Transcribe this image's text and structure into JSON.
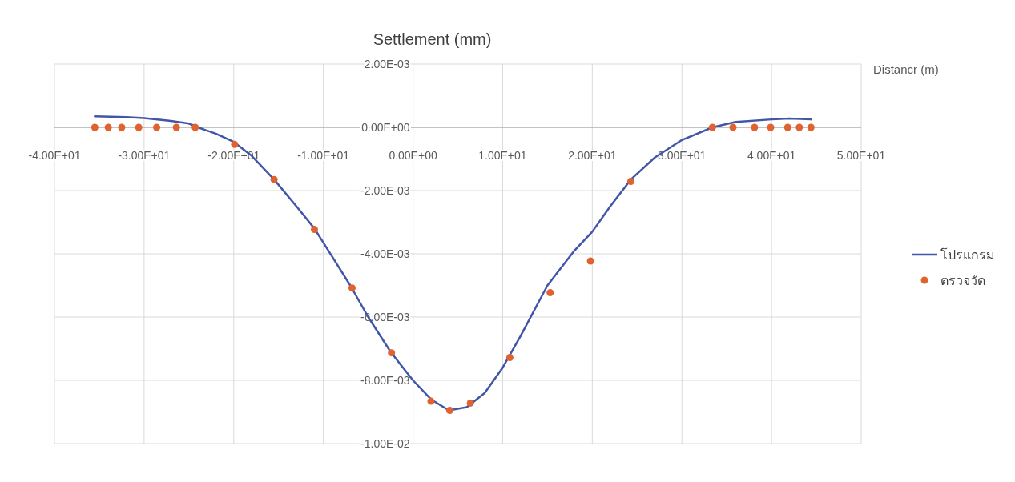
{
  "chart_data": {
    "type": "scatter",
    "ylabel": "Settlement (mm)",
    "xlabel": "Distancr (m)",
    "xlim": [
      -40,
      50
    ],
    "ylim": [
      -0.01,
      0.002
    ],
    "xticks": [
      {
        "value": -40,
        "label": "-4.00E+01"
      },
      {
        "value": -30,
        "label": "-3.00E+01"
      },
      {
        "value": -20,
        "label": "-2.00E+01"
      },
      {
        "value": -10,
        "label": "-1.00E+01"
      },
      {
        "value": 0,
        "label": "0.00E+00"
      },
      {
        "value": 10,
        "label": "1.00E+01"
      },
      {
        "value": 20,
        "label": "2.00E+01"
      },
      {
        "value": 30,
        "label": "3.00E+01"
      },
      {
        "value": 40,
        "label": "4.00E+01"
      },
      {
        "value": 50,
        "label": "5.00E+01"
      }
    ],
    "yticks": [
      {
        "value": 0.002,
        "label": "2.00E-03"
      },
      {
        "value": 0,
        "label": "0.00E+00"
      },
      {
        "value": -0.002,
        "label": "-2.00E-03"
      },
      {
        "value": -0.004,
        "label": "-4.00E-03"
      },
      {
        "value": -0.006,
        "label": "-6.00E-03"
      },
      {
        "value": -0.008,
        "label": "-8.00E-03"
      },
      {
        "value": -0.01,
        "label": "-1.00E-02"
      }
    ],
    "grid": true,
    "legend": "right",
    "series": [
      {
        "name": "โปรแกรม",
        "type": "line",
        "color": "#4256a8",
        "marker": "none",
        "line_style": "solid",
        "x": [
          -35.5,
          -32,
          -30,
          -27,
          -25,
          -24,
          -22,
          -20,
          -18,
          -15.5,
          -13,
          -11,
          -9,
          -7,
          -5,
          -2.5,
          0,
          2,
          4,
          6,
          8,
          10,
          12,
          15,
          18,
          20,
          22,
          24.3,
          27,
          30,
          33.4,
          36,
          40,
          42,
          44.4
        ],
        "values": [
          0.00035,
          0.00032,
          0.00029,
          0.0002,
          0.00012,
          0.0,
          -0.0002,
          -0.00046,
          -0.0009,
          -0.00165,
          -0.0025,
          -0.0032,
          -0.0041,
          -0.005,
          -0.006,
          -0.0071,
          -0.008,
          -0.0086,
          -0.00895,
          -0.00885,
          -0.0084,
          -0.0076,
          -0.0066,
          -0.005,
          -0.0039,
          -0.0033,
          -0.0025,
          -0.00165,
          -0.00095,
          -0.0004,
          0.0,
          0.00017,
          0.00025,
          0.00028,
          0.00025
        ]
      },
      {
        "name": "ตรวจวัด",
        "color": "#e0622f",
        "marker": "circle",
        "x": [
          -35.5,
          -34.0,
          -32.5,
          -30.6,
          -28.6,
          -26.4,
          -24.3,
          -19.9,
          -15.5,
          -11.0,
          -6.8,
          -2.4,
          2.0,
          4.1,
          6.4,
          10.8,
          15.3,
          19.8,
          24.3,
          33.4,
          35.7,
          38.1,
          39.9,
          41.8,
          43.1,
          44.4
        ],
        "values": [
          0.0,
          0.0,
          0.0,
          0.0,
          0.0,
          0.0,
          0.0,
          -0.00054,
          -0.00165,
          -0.00323,
          -0.00508,
          -0.00713,
          -0.00866,
          -0.00895,
          -0.00872,
          -0.00728,
          -0.00523,
          -0.00423,
          -0.00171,
          0.0,
          0.0,
          0.0,
          0.0,
          0.0,
          0.0,
          0.0
        ]
      }
    ]
  }
}
